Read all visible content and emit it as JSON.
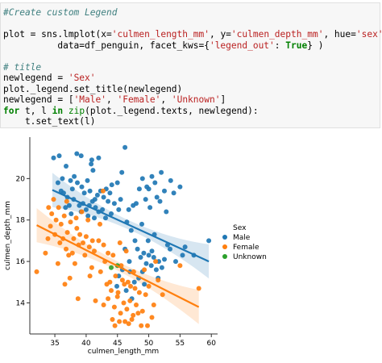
{
  "code_cell": {
    "lines": [
      {
        "tokens": [
          {
            "t": "#Create custom Legend",
            "c": "c-com"
          }
        ]
      },
      {
        "tokens": []
      },
      {
        "tokens": [
          {
            "t": "plot = sns.lmplot(x=",
            "c": ""
          },
          {
            "t": "'culmen_length_mm'",
            "c": "c-str"
          },
          {
            "t": ", y=",
            "c": ""
          },
          {
            "t": "'culmen_depth_mm'",
            "c": "c-str"
          },
          {
            "t": ", hue=",
            "c": ""
          },
          {
            "t": "'sex'",
            "c": "c-str"
          },
          {
            "t": ",",
            "c": ""
          }
        ]
      },
      {
        "tokens": [
          {
            "t": "          data=df_penguin, facet_kws={",
            "c": ""
          },
          {
            "t": "'legend_out'",
            "c": "c-str"
          },
          {
            "t": ": ",
            "c": ""
          },
          {
            "t": "True",
            "c": "c-kw"
          },
          {
            "t": "} )",
            "c": ""
          }
        ]
      },
      {
        "tokens": []
      },
      {
        "tokens": [
          {
            "t": "# title",
            "c": "c-com"
          }
        ]
      },
      {
        "tokens": [
          {
            "t": "newlegend = ",
            "c": ""
          },
          {
            "t": "'Sex'",
            "c": "c-str"
          }
        ]
      },
      {
        "tokens": [
          {
            "t": "plot._legend.set_title(newlegend)",
            "c": ""
          }
        ]
      },
      {
        "tokens": [
          {
            "t": "newlegend = [",
            "c": ""
          },
          {
            "t": "'Male'",
            "c": "c-str"
          },
          {
            "t": ", ",
            "c": ""
          },
          {
            "t": "'Female'",
            "c": "c-str"
          },
          {
            "t": ", ",
            "c": ""
          },
          {
            "t": "'Unknown'",
            "c": "c-str"
          },
          {
            "t": "]",
            "c": ""
          }
        ]
      },
      {
        "tokens": [
          {
            "t": "for",
            "c": "c-kw"
          },
          {
            "t": " t, l ",
            "c": ""
          },
          {
            "t": "in",
            "c": "c-kw"
          },
          {
            "t": " ",
            "c": ""
          },
          {
            "t": "zip",
            "c": "c-num"
          },
          {
            "t": "(plot._legend.texts, newlegend):",
            "c": ""
          }
        ]
      },
      {
        "tokens": [
          {
            "t": "    t.set_text(l)",
            "c": ""
          }
        ]
      }
    ]
  },
  "chart_data": {
    "type": "scatter",
    "xlabel": "culmen_length_mm",
    "ylabel": "culmen_depth_mm",
    "xlim": [
      31,
      61
    ],
    "ylim": [
      12.5,
      22.0
    ],
    "xticks": [
      35,
      40,
      45,
      50,
      55,
      60
    ],
    "yticks": [
      14,
      16,
      18,
      20
    ],
    "grid": false,
    "legend": {
      "title": "Sex",
      "placement": "right-outside",
      "entries": [
        "Male",
        "Female",
        "Unknown"
      ]
    },
    "colors": {
      "Male": "#1f77b4",
      "Female": "#ff7f0e",
      "Unknown": "#2ca02c"
    },
    "series": [
      {
        "name": "Male",
        "regression": {
          "x": [
            34.6,
            59.6
          ],
          "y": [
            19.45,
            16.0
          ]
        },
        "points": [
          [
            35.7,
            21.1
          ],
          [
            38.5,
            21.2
          ],
          [
            39.2,
            21.1
          ],
          [
            40.8,
            20.7
          ],
          [
            42.0,
            21.0
          ],
          [
            46.2,
            21.5
          ],
          [
            41.1,
            20.4
          ],
          [
            38.1,
            20.1
          ],
          [
            36.2,
            20.0
          ],
          [
            35.5,
            19.8
          ],
          [
            37.5,
            19.9
          ],
          [
            37.8,
            19.5
          ],
          [
            38.6,
            19.8
          ],
          [
            39.3,
            19.6
          ],
          [
            39.7,
            19.3
          ],
          [
            40.2,
            19.9
          ],
          [
            40.6,
            19.4
          ],
          [
            41.4,
            19.0
          ],
          [
            41.8,
            19.2
          ],
          [
            42.3,
            19.4
          ],
          [
            42.8,
            19.1
          ],
          [
            43.2,
            19.5
          ],
          [
            43.8,
            19.3
          ],
          [
            45.0,
            19.8
          ],
          [
            45.5,
            19.0
          ],
          [
            36.4,
            19.3
          ],
          [
            37.0,
            19.1
          ],
          [
            38.0,
            19.0
          ],
          [
            38.9,
            18.7
          ],
          [
            39.5,
            18.8
          ],
          [
            40.0,
            18.5
          ],
          [
            40.5,
            18.7
          ],
          [
            41.0,
            18.9
          ],
          [
            41.5,
            18.6
          ],
          [
            42.0,
            18.4
          ],
          [
            42.6,
            18.5
          ],
          [
            43.1,
            18.1
          ],
          [
            44.0,
            18.3
          ],
          [
            44.5,
            18.8
          ],
          [
            45.2,
            18.5
          ],
          [
            39.2,
            18.4
          ],
          [
            40.3,
            18.2
          ],
          [
            41.3,
            18.1
          ],
          [
            36.7,
            18.6
          ],
          [
            37.6,
            18.3
          ],
          [
            46.8,
            18.5
          ],
          [
            47.5,
            18.7
          ],
          [
            48.5,
            19.5
          ],
          [
            49.0,
            20.0
          ],
          [
            50.0,
            19.5
          ],
          [
            50.5,
            20.1
          ],
          [
            51.0,
            19.8
          ],
          [
            52.0,
            20.3
          ],
          [
            52.5,
            19.4
          ],
          [
            53.5,
            19.9
          ],
          [
            54.0,
            19.3
          ],
          [
            55.0,
            19.6
          ],
          [
            51.3,
            19.1
          ],
          [
            49.5,
            19.0
          ],
          [
            48.0,
            18.8
          ],
          [
            50.2,
            18.6
          ],
          [
            51.8,
            18.9
          ],
          [
            52.8,
            18.4
          ],
          [
            46.5,
            17.9
          ],
          [
            47.2,
            17.5
          ],
          [
            47.8,
            17.0
          ],
          [
            48.2,
            16.6
          ],
          [
            48.7,
            16.2
          ],
          [
            49.2,
            16.4
          ],
          [
            49.6,
            15.9
          ],
          [
            50.0,
            16.3
          ],
          [
            50.4,
            15.8
          ],
          [
            50.8,
            16.2
          ],
          [
            51.2,
            15.6
          ],
          [
            51.6,
            16.0
          ],
          [
            52.1,
            15.7
          ],
          [
            49.0,
            15.5
          ],
          [
            48.4,
            15.2
          ],
          [
            47.7,
            15.0
          ],
          [
            46.9,
            16.0
          ],
          [
            45.8,
            15.6
          ],
          [
            46.2,
            16.6
          ],
          [
            45.2,
            15.3
          ],
          [
            44.9,
            14.8
          ],
          [
            50.5,
            16.5
          ],
          [
            51.5,
            15.2
          ],
          [
            52.5,
            16.1
          ],
          [
            53.4,
            16.6
          ],
          [
            54.3,
            16.0
          ],
          [
            55.8,
            16.7
          ],
          [
            49.9,
            17.0
          ],
          [
            50.9,
            17.3
          ],
          [
            48.9,
            17.8
          ],
          [
            59.6,
            17.0
          ],
          [
            57.2,
            16.3
          ],
          [
            55.4,
            16.3
          ],
          [
            53.0,
            16.8
          ],
          [
            49.3,
            14.9
          ],
          [
            47.3,
            14.2
          ],
          [
            46.4,
            14.6
          ],
          [
            36.0,
            19.4
          ],
          [
            37.3,
            18.7
          ],
          [
            34.8,
            21.0
          ],
          [
            44.1,
            19.7
          ],
          [
            43.5,
            18.9
          ],
          [
            36.8,
            20.6
          ],
          [
            40.9,
            20.9
          ],
          [
            45.7,
            20.3
          ],
          [
            49.7,
            19.6
          ],
          [
            47.0,
            15.5
          ]
        ]
      },
      {
        "name": "Female",
        "regression": {
          "x": [
            32.1,
            58.0
          ],
          "y": [
            17.75,
            13.8
          ]
        },
        "points": [
          [
            34.5,
            18.3
          ],
          [
            35.2,
            18.0
          ],
          [
            36.0,
            17.8
          ],
          [
            36.5,
            18.2
          ],
          [
            37.0,
            17.4
          ],
          [
            37.5,
            17.9
          ],
          [
            38.0,
            17.1
          ],
          [
            38.5,
            17.6
          ],
          [
            39.0,
            17.3
          ],
          [
            39.5,
            16.9
          ],
          [
            40.0,
            17.2
          ],
          [
            40.5,
            16.7
          ],
          [
            41.0,
            17.0
          ],
          [
            35.0,
            17.3
          ],
          [
            35.8,
            16.9
          ],
          [
            36.8,
            16.6
          ],
          [
            37.8,
            16.4
          ],
          [
            38.8,
            16.8
          ],
          [
            39.8,
            16.3
          ],
          [
            34.0,
            18.6
          ],
          [
            34.8,
            19.0
          ],
          [
            35.6,
            18.6
          ],
          [
            36.3,
            17.1
          ],
          [
            37.2,
            16.3
          ],
          [
            38.4,
            18.1
          ],
          [
            40.3,
            18.0
          ],
          [
            41.3,
            16.5
          ],
          [
            42.0,
            17.0
          ],
          [
            42.8,
            16.8
          ],
          [
            43.5,
            16.4
          ],
          [
            42.2,
            17.8
          ],
          [
            39.3,
            18.4
          ],
          [
            36.9,
            18.9
          ],
          [
            32.1,
            15.5
          ],
          [
            33.5,
            16.4
          ],
          [
            34.3,
            17.7
          ],
          [
            38.2,
            15.9
          ],
          [
            40.9,
            15.7
          ],
          [
            37.4,
            15.2
          ],
          [
            42.7,
            19.4
          ],
          [
            43.5,
            14.2
          ],
          [
            44.0,
            14.6
          ],
          [
            44.5,
            13.8
          ],
          [
            45.0,
            14.3
          ],
          [
            45.5,
            13.5
          ],
          [
            46.0,
            14.0
          ],
          [
            46.5,
            13.7
          ],
          [
            47.0,
            14.1
          ],
          [
            47.5,
            13.4
          ],
          [
            48.0,
            13.9
          ],
          [
            48.5,
            14.5
          ],
          [
            49.0,
            13.6
          ],
          [
            49.5,
            14.4
          ],
          [
            50.0,
            14.8
          ],
          [
            50.5,
            13.3
          ],
          [
            43.8,
            15.0
          ],
          [
            44.7,
            15.3
          ],
          [
            45.8,
            15.1
          ],
          [
            46.7,
            15.0
          ],
          [
            47.8,
            14.7
          ],
          [
            42.8,
            13.9
          ],
          [
            43.3,
            14.9
          ],
          [
            44.2,
            13.2
          ],
          [
            45.3,
            13.1
          ],
          [
            46.2,
            13.1
          ],
          [
            47.3,
            13.2
          ],
          [
            48.3,
            13.5
          ],
          [
            45.1,
            14.5
          ],
          [
            46.1,
            14.9
          ],
          [
            47.1,
            14.8
          ],
          [
            41.5,
            14.1
          ],
          [
            42.3,
            15.5
          ],
          [
            50.8,
            13.9
          ],
          [
            52.2,
            14.4
          ],
          [
            55.0,
            15.8
          ],
          [
            58.0,
            14.7
          ],
          [
            51.5,
            15.1
          ],
          [
            46.4,
            16.5
          ],
          [
            45.6,
            15.8
          ],
          [
            44.6,
            12.9
          ],
          [
            46.8,
            13.0
          ],
          [
            49.8,
            12.9
          ],
          [
            48.8,
            12.9
          ],
          [
            43.0,
            16.0
          ],
          [
            44.3,
            16.3
          ],
          [
            45.4,
            16.9
          ],
          [
            47.6,
            15.5
          ],
          [
            49.3,
            15.6
          ],
          [
            51.1,
            16.0
          ],
          [
            38.7,
            14.2
          ],
          [
            35.5,
            15.9
          ],
          [
            40.6,
            15.3
          ],
          [
            36.6,
            14.9
          ],
          [
            33.9,
            17.1
          ]
        ]
      },
      {
        "name": "Unknown",
        "points": [
          [
            44.0,
            15.7
          ],
          [
            45.0,
            15.8
          ]
        ]
      }
    ]
  }
}
